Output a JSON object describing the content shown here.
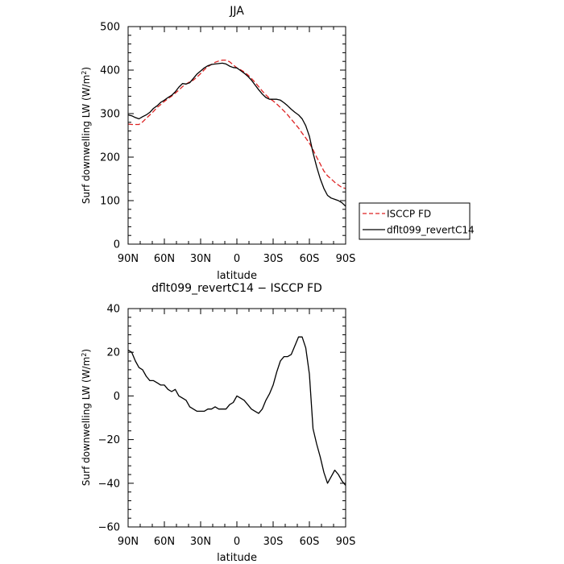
{
  "chart_data": [
    {
      "type": "line",
      "title": "JJA",
      "xlabel": "latitude",
      "ylabel": "Surf downwelling LW (W/m²)",
      "ylabel_main": "Surf downwelling LW (W/m",
      "ylabel_sup": "2",
      "ylabel_end": ")",
      "xlim": [
        90,
        -90
      ],
      "ylim": [
        0,
        500
      ],
      "x_ticks": [
        90,
        60,
        30,
        0,
        -30,
        -60,
        -90
      ],
      "x_tick_labels": [
        "90N",
        "60N",
        "30N",
        "0",
        "30S",
        "60S",
        "90S"
      ],
      "y_ticks": [
        0,
        100,
        200,
        300,
        400,
        500
      ],
      "y_tick_labels": [
        "0",
        "100",
        "200",
        "300",
        "400",
        "500"
      ],
      "legend": "right",
      "series": [
        {
          "name": "ISCCP FD",
          "color": "#dd2222",
          "dash": "dashed",
          "x": [
            90,
            87,
            84,
            81,
            78,
            75,
            72,
            69,
            66,
            63,
            60,
            57,
            54,
            51,
            48,
            45,
            42,
            39,
            36,
            33,
            30,
            27,
            24,
            21,
            18,
            15,
            12,
            9,
            6,
            3,
            0,
            -3,
            -6,
            -9,
            -12,
            -15,
            -18,
            -21,
            -24,
            -27,
            -30,
            -33,
            -36,
            -39,
            -42,
            -45,
            -48,
            -51,
            -54,
            -57,
            -60,
            -63,
            -66,
            -69,
            -72,
            -75,
            -78,
            -81,
            -84,
            -87,
            -90
          ],
          "values": [
            276,
            275,
            275,
            275,
            281,
            289,
            297,
            305,
            314,
            321,
            328,
            334,
            340,
            347,
            354,
            362,
            368,
            373,
            377,
            384,
            392,
            401,
            408,
            413,
            418,
            421,
            423,
            423,
            419,
            412,
            405,
            401,
            396,
            389,
            381,
            372,
            362,
            352,
            343,
            335,
            329,
            322,
            314,
            306,
            297,
            287,
            277,
            267,
            255,
            244,
            232,
            217,
            200,
            184,
            168,
            157,
            150,
            142,
            136,
            130,
            128
          ]
        },
        {
          "name": "dflt099_revertC14",
          "color": "#000000",
          "dash": "solid",
          "x": [
            90,
            87,
            84,
            81,
            78,
            75,
            72,
            69,
            66,
            63,
            60,
            57,
            54,
            51,
            48,
            45,
            42,
            39,
            36,
            33,
            30,
            27,
            24,
            21,
            18,
            15,
            12,
            9,
            6,
            3,
            0,
            -3,
            -6,
            -9,
            -12,
            -15,
            -18,
            -21,
            -24,
            -27,
            -30,
            -33,
            -36,
            -39,
            -42,
            -45,
            -48,
            -51,
            -54,
            -57,
            -60,
            -63,
            -66,
            -69,
            -72,
            -75,
            -78,
            -81,
            -84,
            -87,
            -90
          ],
          "values": [
            297,
            295,
            291,
            288,
            293,
            297,
            303,
            312,
            318,
            326,
            331,
            337,
            342,
            350,
            361,
            369,
            368,
            371,
            381,
            391,
            398,
            405,
            410,
            413,
            414,
            415,
            416,
            414,
            409,
            406,
            405,
            399,
            393,
            386,
            377,
            366,
            355,
            345,
            337,
            333,
            333,
            333,
            331,
            325,
            318,
            310,
            303,
            297,
            288,
            272,
            248,
            210,
            178,
            150,
            128,
            112,
            106,
            103,
            100,
            95,
            87
          ]
        }
      ]
    },
    {
      "type": "line",
      "title": "dflt099_revertC14 − ISCCP FD",
      "xlabel": "latitude",
      "ylabel": "Surf downwelling LW (W/m²)",
      "ylabel_main": "Surf downwelling LW (W/m",
      "ylabel_sup": "2",
      "ylabel_end": ")",
      "xlim": [
        90,
        -90
      ],
      "ylim": [
        -60,
        40
      ],
      "x_ticks": [
        90,
        60,
        30,
        0,
        -30,
        -60,
        -90
      ],
      "x_tick_labels": [
        "90N",
        "60N",
        "30N",
        "0",
        "30S",
        "60S",
        "90S"
      ],
      "y_ticks": [
        -60,
        -40,
        -20,
        0,
        20,
        40
      ],
      "y_tick_labels": [
        "−60",
        "−40",
        "−20",
        "0",
        "20",
        "40"
      ],
      "series": [
        {
          "color": "#000000",
          "dash": "solid",
          "x": [
            90,
            87,
            84,
            81,
            78,
            75,
            72,
            69,
            66,
            63,
            60,
            57,
            54,
            51,
            48,
            45,
            42,
            39,
            36,
            33,
            30,
            27,
            24,
            21,
            18,
            15,
            12,
            9,
            6,
            3,
            0,
            -3,
            -6,
            -9,
            -12,
            -15,
            -18,
            -21,
            -24,
            -27,
            -30,
            -33,
            -36,
            -39,
            -42,
            -45,
            -48,
            -51,
            -54,
            -57,
            -60,
            -63,
            -66,
            -69,
            -72,
            -75,
            -78,
            -81,
            -84,
            -87,
            -90
          ],
          "values": [
            21,
            20,
            16,
            13,
            12,
            9,
            7,
            7,
            6,
            5,
            5,
            3,
            2,
            3,
            0,
            -1,
            -2,
            -5,
            -6,
            -7,
            -7,
            -7,
            -6,
            -6,
            -5,
            -6,
            -6,
            -6,
            -4,
            -3,
            0,
            -1,
            -2,
            -4,
            -6,
            -7,
            -8,
            -6,
            -2,
            1,
            5,
            11,
            16,
            18,
            18,
            19,
            23,
            27,
            27,
            22,
            10,
            -15,
            -22,
            -28,
            -35,
            -40,
            -37,
            -34,
            -36,
            -39,
            -41
          ]
        }
      ]
    }
  ]
}
